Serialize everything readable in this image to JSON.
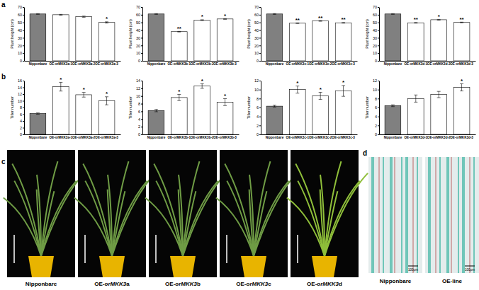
{
  "chart_data": [
    {
      "type": "bar",
      "y_label": "Plant height (cm)",
      "categories": [
        "Nipponbare",
        "OE-orMKK3a-1",
        "OE-orMKK3a-2",
        "OE-orMKK3a-3"
      ],
      "values": [
        61,
        60,
        57.5,
        50
      ],
      "errors": [
        0.5,
        0.5,
        0.8,
        0.8
      ],
      "colors": [
        "#808080",
        "#ffffff",
        "#ffffff",
        "#ffffff"
      ],
      "ylim": [
        0,
        70
      ],
      "yticks": [
        0,
        10,
        20,
        30,
        40,
        50,
        60,
        70
      ],
      "annotations": [
        {
          "text": "*",
          "category": "OE-orMKK3a-3"
        }
      ]
    },
    {
      "type": "bar",
      "y_label": "Plant height (cm)",
      "categories": [
        "Nipponbare",
        "OE-orMKK3b-1",
        "OE-orMKK3b-2",
        "OE-orMKK3b-3"
      ],
      "values": [
        61,
        38,
        53,
        54.5
      ],
      "errors": [
        0.5,
        0.4,
        0.5,
        0.5
      ],
      "colors": [
        "#808080",
        "#ffffff",
        "#ffffff",
        "#ffffff"
      ],
      "ylim": [
        0,
        70
      ],
      "yticks": [
        0,
        10,
        20,
        30,
        40,
        50,
        60,
        70
      ],
      "annotations": [
        {
          "text": "**",
          "category": "OE-orMKK3b-1"
        },
        {
          "text": "*",
          "category": "OE-orMKK3b-2"
        },
        {
          "text": "*",
          "category": "OE-orMKK3b-3"
        }
      ]
    },
    {
      "type": "bar",
      "y_label": "Plant height (cm)",
      "categories": [
        "Nipponbare",
        "OE-orMKK3c-1",
        "OE-orMKK3c-2",
        "OE-orMKK3c-3"
      ],
      "values": [
        61,
        49,
        52,
        49.5
      ],
      "errors": [
        0.5,
        0.4,
        0.5,
        0.4
      ],
      "colors": [
        "#808080",
        "#ffffff",
        "#ffffff",
        "#ffffff"
      ],
      "ylim": [
        0,
        70
      ],
      "yticks": [
        0,
        10,
        20,
        30,
        40,
        50,
        60,
        70
      ],
      "annotations": [
        {
          "text": "**",
          "category": "OE-orMKK3c-1"
        },
        {
          "text": "**",
          "category": "OE-orMKK3c-2"
        },
        {
          "text": "**",
          "category": "OE-orMKK3c-3"
        }
      ]
    },
    {
      "type": "bar",
      "y_label": "Plant height (cm)",
      "categories": [
        "Nipponbare",
        "OE-orMKK3d-1",
        "OE-orMKK3d-2",
        "OE-orMKK3d-3"
      ],
      "values": [
        61,
        49.5,
        53.5,
        50
      ],
      "errors": [
        0.5,
        0.4,
        0.5,
        0.4
      ],
      "colors": [
        "#808080",
        "#ffffff",
        "#ffffff",
        "#ffffff"
      ],
      "ylim": [
        0,
        70
      ],
      "yticks": [
        0,
        10,
        20,
        30,
        40,
        50,
        60,
        70
      ],
      "annotations": [
        {
          "text": "**",
          "category": "OE-orMKK3d-1"
        },
        {
          "text": "*",
          "category": "OE-orMKK3d-2"
        },
        {
          "text": "**",
          "category": "OE-orMKK3d-3"
        }
      ]
    },
    {
      "type": "bar",
      "y_label": "Tiller number",
      "categories": [
        "Nipponbare",
        "OE-orMKK3a-1",
        "OE-orMKK3a-2",
        "OE-orMKK3a-3"
      ],
      "values": [
        6.2,
        14.2,
        11.8,
        10
      ],
      "errors": [
        0.2,
        1.3,
        0.7,
        1.2
      ],
      "colors": [
        "#808080",
        "#ffffff",
        "#ffffff",
        "#ffffff"
      ],
      "ylim": [
        0,
        16
      ],
      "yticks": [
        0,
        2,
        4,
        6,
        8,
        10,
        12,
        14,
        16
      ],
      "annotations": [
        {
          "text": "*",
          "category": "OE-orMKK3a-1"
        },
        {
          "text": "*",
          "category": "OE-orMKK3a-2"
        },
        {
          "text": "*",
          "category": "OE-orMKK3a-3"
        }
      ]
    },
    {
      "type": "bar",
      "y_label": "Tiller number",
      "categories": [
        "Nipponbare",
        "OE-orMKK3b-1",
        "OE-orMKK3b-2",
        "OE-orMKK3b-3"
      ],
      "values": [
        6.2,
        9.6,
        12.6,
        8.4
      ],
      "errors": [
        0.3,
        0.8,
        0.6,
        0.9
      ],
      "colors": [
        "#808080",
        "#ffffff",
        "#ffffff",
        "#ffffff"
      ],
      "ylim": [
        0,
        14
      ],
      "yticks": [
        0,
        2,
        4,
        6,
        8,
        10,
        12,
        14
      ],
      "annotations": [
        {
          "text": "*",
          "category": "OE-orMKK3b-1"
        },
        {
          "text": "*",
          "category": "OE-orMKK3b-2"
        },
        {
          "text": "*",
          "category": "OE-orMKK3b-3"
        }
      ]
    },
    {
      "type": "bar",
      "y_label": "Tiller number",
      "categories": [
        "Nipponbare",
        "OE-orMKK3c-1",
        "OE-orMKK3c-2",
        "OE-orMKK3c-3"
      ],
      "values": [
        6.3,
        10,
        8.6,
        9.7
      ],
      "errors": [
        0.2,
        0.8,
        0.8,
        1.2
      ],
      "colors": [
        "#808080",
        "#ffffff",
        "#ffffff",
        "#ffffff"
      ],
      "ylim": [
        0,
        12
      ],
      "yticks": [
        0,
        2,
        4,
        6,
        8,
        10,
        12
      ],
      "annotations": [
        {
          "text": "*",
          "category": "OE-orMKK3c-1"
        },
        {
          "text": "*",
          "category": "OE-orMKK3c-2"
        },
        {
          "text": "*",
          "category": "OE-orMKK3c-3"
        }
      ]
    },
    {
      "type": "bar",
      "y_label": "Tiller number",
      "categories": [
        "Nipponbare",
        "OE-orMKK3d-1",
        "OE-orMKK3d-2",
        "OE-orMKK3d-3"
      ],
      "values": [
        6.4,
        8,
        8.9,
        10.5
      ],
      "errors": [
        0.2,
        0.8,
        0.7,
        0.8
      ],
      "colors": [
        "#808080",
        "#ffffff",
        "#ffffff",
        "#ffffff"
      ],
      "ylim": [
        0,
        12
      ],
      "yticks": [
        0,
        2,
        4,
        6,
        8,
        10,
        12
      ],
      "annotations": [
        {
          "text": "*",
          "category": "OE-orMKK3d-3"
        }
      ]
    }
  ],
  "panel_labels": [
    "a",
    "b",
    "c",
    "d"
  ],
  "photo_panel_c": {
    "labels": [
      "Nipponbare",
      "OE-orMKK3a",
      "OE-orMKK3b",
      "OE-orMKK3c",
      "OE-orMKK3d"
    ]
  },
  "photo_panel_d": {
    "labels": [
      "Nipponbare",
      "OE-line"
    ],
    "scale_bar": "100μm"
  }
}
